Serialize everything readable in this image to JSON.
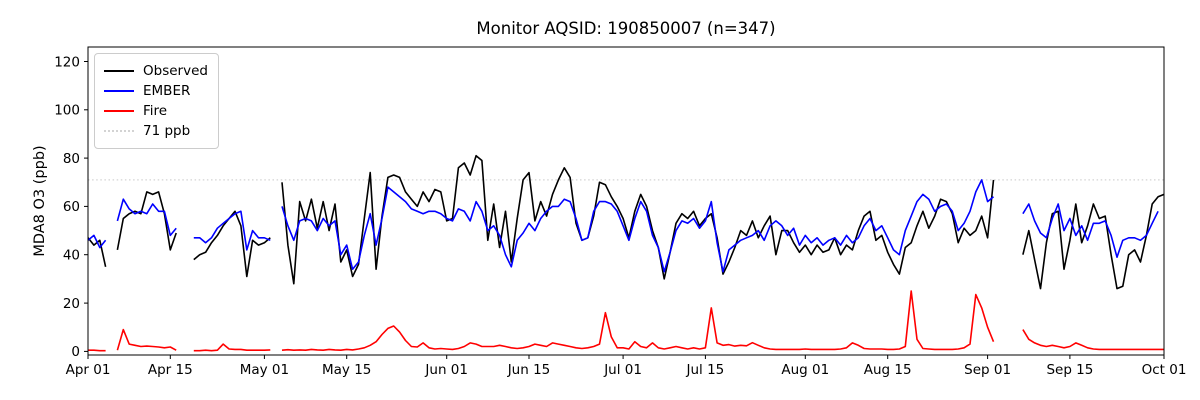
{
  "legend": {
    "items": [
      {
        "label": "Observed",
        "color": "#000000",
        "style": "solid"
      },
      {
        "label": "EMBER",
        "color": "#0000ff",
        "style": "solid"
      },
      {
        "label": "Fire",
        "color": "#ff0000",
        "style": "solid"
      },
      {
        "label": "71 ppb",
        "color": "#d3d3d3",
        "style": "dotted"
      }
    ]
  },
  "chart_data": {
    "type": "line",
    "title": "Monitor AQSID: 190850007 (n=347)",
    "xlabel": "",
    "ylabel": "MDA8 O3 (ppb)",
    "x_unit": "daily values, days indexed from Apr 01",
    "xlim_days": [
      0,
      183
    ],
    "ylim": [
      -1.5,
      126
    ],
    "grid": false,
    "x_ticks": [
      {
        "label": "Apr 01",
        "day": 0
      },
      {
        "label": "Apr 15",
        "day": 14
      },
      {
        "label": "May 01",
        "day": 30
      },
      {
        "label": "May 15",
        "day": 44
      },
      {
        "label": "Jun 01",
        "day": 61
      },
      {
        "label": "Jun 15",
        "day": 75
      },
      {
        "label": "Jul 01",
        "day": 91
      },
      {
        "label": "Jul 15",
        "day": 105
      },
      {
        "label": "Aug 01",
        "day": 122
      },
      {
        "label": "Aug 15",
        "day": 136
      },
      {
        "label": "Sep 01",
        "day": 153
      },
      {
        "label": "Sep 15",
        "day": 167
      },
      {
        "label": "Oct 01",
        "day": 183
      }
    ],
    "y_ticks": [
      0,
      20,
      40,
      60,
      80,
      100,
      120
    ],
    "threshold": {
      "value": 71,
      "label": "71 ppb",
      "color": "#d3d3d3",
      "style": "dotted"
    },
    "series": [
      {
        "name": "Observed",
        "color": "#000000",
        "values": [
          47,
          44,
          46,
          35,
          null,
          42,
          55,
          57,
          58,
          57,
          66,
          65,
          66,
          57,
          42,
          49,
          null,
          null,
          38,
          40,
          41,
          45,
          48,
          52,
          55,
          58,
          52,
          31,
          46,
          44,
          45,
          47,
          null,
          70,
          44,
          28,
          62,
          54,
          63,
          51,
          62,
          50,
          61,
          37,
          42,
          31,
          36,
          55,
          74,
          34,
          56,
          72,
          73,
          72,
          66,
          63,
          60,
          66,
          62,
          67,
          66,
          54,
          55,
          76,
          78,
          73,
          81,
          79,
          46,
          61,
          43,
          58,
          37,
          55,
          71,
          74,
          54,
          62,
          56,
          65,
          71,
          76,
          72,
          53,
          46,
          47,
          56,
          70,
          69,
          64,
          60,
          55,
          47,
          58,
          65,
          60,
          50,
          43,
          30,
          41,
          53,
          57,
          55,
          58,
          52,
          55,
          57,
          47,
          32,
          37,
          43,
          50,
          48,
          54,
          47,
          52,
          56,
          40,
          50,
          50,
          45,
          41,
          44,
          40,
          44,
          41,
          42,
          47,
          40,
          44,
          42,
          50,
          56,
          58,
          46,
          48,
          41,
          36,
          32,
          43,
          45,
          52,
          58,
          51,
          56,
          63,
          62,
          57,
          45,
          51,
          48,
          50,
          56,
          47,
          71,
          null,
          null,
          null,
          null,
          40,
          50,
          38,
          26,
          45,
          57,
          58,
          34,
          46,
          61,
          45,
          52,
          61,
          55,
          56,
          40,
          26,
          27,
          40,
          42,
          37,
          48,
          61,
          64,
          65
        ]
      },
      {
        "name": "EMBER",
        "color": "#0000ff",
        "values": [
          46,
          48,
          43,
          46,
          null,
          54,
          63,
          59,
          57,
          58,
          57,
          61,
          58,
          58,
          48,
          51,
          null,
          null,
          47,
          47,
          45,
          47,
          51,
          53,
          55,
          57,
          58,
          42,
          50,
          47,
          47,
          46,
          null,
          60,
          52,
          46,
          54,
          55,
          54,
          50,
          55,
          52,
          54,
          40,
          44,
          34,
          37,
          48,
          57,
          44,
          55,
          68,
          66,
          64,
          62,
          59,
          58,
          57,
          58,
          58,
          57,
          55,
          54,
          59,
          58,
          54,
          62,
          58,
          50,
          52,
          48,
          40,
          35,
          46,
          49,
          53,
          50,
          55,
          58,
          60,
          60,
          63,
          62,
          55,
          46,
          47,
          58,
          62,
          62,
          61,
          58,
          52,
          46,
          55,
          62,
          58,
          48,
          43,
          33,
          41,
          50,
          54,
          53,
          55,
          51,
          54,
          62,
          45,
          33,
          42,
          44,
          46,
          47,
          48,
          50,
          46,
          52,
          54,
          52,
          48,
          51,
          44,
          48,
          45,
          47,
          44,
          46,
          47,
          44,
          48,
          45,
          47,
          52,
          55,
          50,
          52,
          47,
          42,
          40,
          50,
          56,
          62,
          65,
          63,
          58,
          60,
          61,
          58,
          50,
          53,
          58,
          66,
          71,
          62,
          64,
          null,
          null,
          null,
          null,
          57,
          61,
          54,
          49,
          47,
          55,
          61,
          50,
          55,
          48,
          52,
          46,
          53,
          53,
          54,
          48,
          39,
          46,
          47,
          47,
          46,
          48,
          53,
          58,
          null
        ]
      },
      {
        "name": "Fire",
        "color": "#ff0000",
        "values": [
          0.5,
          0.5,
          0.3,
          0.3,
          null,
          0.5,
          9,
          3,
          2.5,
          2,
          2.2,
          2,
          1.8,
          1.5,
          1.8,
          0.5,
          null,
          null,
          0.3,
          0.3,
          0.5,
          0.3,
          0.5,
          3,
          1,
          0.8,
          0.8,
          0.5,
          0.5,
          0.5,
          0.5,
          0.6,
          null,
          0.5,
          0.7,
          0.5,
          0.6,
          0.5,
          0.8,
          0.6,
          0.5,
          0.8,
          0.6,
          0.5,
          0.8,
          0.6,
          1,
          1.5,
          2.5,
          4,
          7,
          9.5,
          10.5,
          8,
          4.5,
          2,
          1.8,
          3.5,
          1.5,
          1,
          1.2,
          1,
          0.8,
          1.2,
          2,
          3.5,
          3,
          2,
          2,
          2,
          2.5,
          2,
          1.5,
          1.2,
          1.5,
          2,
          3,
          2.5,
          2,
          3.5,
          3,
          2.5,
          2,
          1.5,
          1.2,
          1.5,
          2,
          3,
          16,
          6,
          1.5,
          1.5,
          1,
          4,
          2,
          1.5,
          3.5,
          1.5,
          1,
          1.5,
          2,
          1.5,
          1,
          1.5,
          1,
          1.5,
          18,
          3.5,
          2.5,
          2.8,
          2.2,
          2.5,
          2.3,
          3.6,
          2.5,
          1.5,
          1,
          0.8,
          0.8,
          0.8,
          0.8,
          0.8,
          1,
          0.8,
          0.8,
          0.8,
          0.8,
          0.8,
          1,
          1.5,
          3.5,
          2.5,
          1.2,
          1,
          1,
          1,
          0.8,
          0.8,
          1,
          2,
          25,
          5,
          1.2,
          1,
          0.8,
          0.8,
          0.8,
          0.8,
          1,
          1.5,
          3,
          23.5,
          18,
          10,
          4,
          null,
          null,
          null,
          null,
          9,
          5,
          3.5,
          2.5,
          2,
          2.5,
          2,
          1.5,
          2,
          3.5,
          2.5,
          1.5,
          1,
          0.8,
          0.8,
          0.8,
          0.8,
          0.8,
          0.8,
          0.8,
          0.8,
          0.8,
          0.8,
          0.8,
          0.8
        ]
      }
    ]
  }
}
